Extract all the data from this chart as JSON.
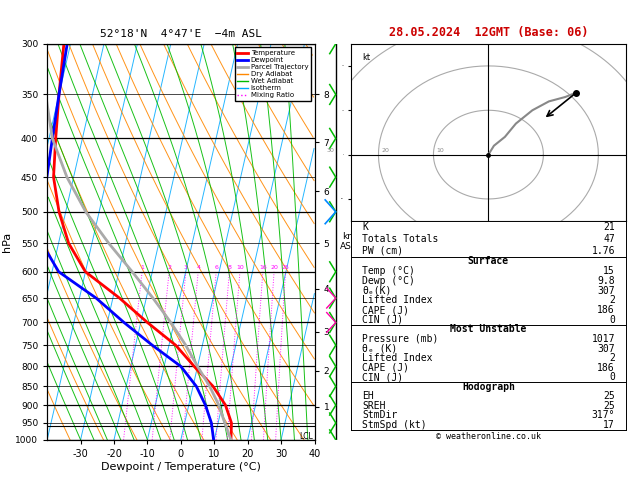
{
  "title_left": "52°18'N  4°47'E  −4m ASL",
  "title_right": "28.05.2024  12GMT (Base: 06)",
  "xlabel": "Dewpoint / Temperature (°C)",
  "ylabel_left": "hPa",
  "pressure_levels": [
    300,
    350,
    400,
    450,
    500,
    550,
    600,
    650,
    700,
    750,
    800,
    850,
    900,
    950,
    1000
  ],
  "temp_profile_T": [
    15,
    14,
    11,
    6,
    -1,
    -8,
    -18,
    -28,
    -40,
    -47,
    -52,
    -56,
    -58,
    -60,
    -62
  ],
  "temp_profile_Td": [
    9.8,
    8,
    5,
    1,
    -5,
    -15,
    -25,
    -35,
    -48,
    -55,
    -57,
    -58,
    -59,
    -60,
    -61
  ],
  "pressures_for_profile": [
    1000,
    950,
    900,
    850,
    800,
    750,
    700,
    650,
    600,
    550,
    500,
    450,
    400,
    350,
    300
  ],
  "parcel_T": [
    15,
    12,
    9,
    5,
    0,
    -5,
    -11,
    -18,
    -26,
    -35,
    -44,
    -52,
    -59,
    -64,
    -68
  ],
  "colors": {
    "temperature": "#ff0000",
    "dewpoint": "#0000ff",
    "parcel": "#aaaaaa",
    "dry_adiabat": "#ff8800",
    "wet_adiabat": "#00bb00",
    "isotherm": "#00aaff",
    "mixing_ratio": "#ff00ff",
    "background": "#ffffff",
    "grid": "#000000"
  },
  "legend_entries": [
    {
      "label": "Temperature",
      "color": "#ff0000",
      "lw": 2,
      "ls": "-"
    },
    {
      "label": "Dewpoint",
      "color": "#0000ff",
      "lw": 2,
      "ls": "-"
    },
    {
      "label": "Parcel Trajectory",
      "color": "#aaaaaa",
      "lw": 2,
      "ls": "-"
    },
    {
      "label": "Dry Adiabat",
      "color": "#ff8800",
      "lw": 1,
      "ls": "-"
    },
    {
      "label": "Wet Adiabat",
      "color": "#00bb00",
      "lw": 1,
      "ls": "-"
    },
    {
      "label": "Isotherm",
      "color": "#00aaff",
      "lw": 1,
      "ls": "-"
    },
    {
      "label": "Mixing Ratio",
      "color": "#ff00ff",
      "lw": 1,
      "ls": ":"
    }
  ],
  "km_ticks": [
    1,
    2,
    3,
    4,
    5,
    6,
    7,
    8
  ],
  "km_pressures": [
    905,
    810,
    720,
    632,
    550,
    470,
    405,
    350
  ],
  "mixing_ratio_vals": [
    1,
    2,
    3,
    4,
    6,
    8,
    10,
    16,
    20,
    25
  ],
  "stats": {
    "K": 21,
    "Totals_Totals": 47,
    "PW_cm": 1.76,
    "Surface_Temp": 15,
    "Surface_Dewp": 9.8,
    "Surface_theta_e": 307,
    "Surface_LI": 2,
    "Surface_CAPE": 186,
    "Surface_CIN": 0,
    "MU_Pressure": 1017,
    "MU_theta_e": 307,
    "MU_LI": 2,
    "MU_CAPE": 186,
    "MU_CIN": 0,
    "EH": 25,
    "SREH": 25,
    "StmDir": "317°",
    "StmSpd_kt": 17
  },
  "lcl_pressure": 960,
  "skew_factor": 27
}
